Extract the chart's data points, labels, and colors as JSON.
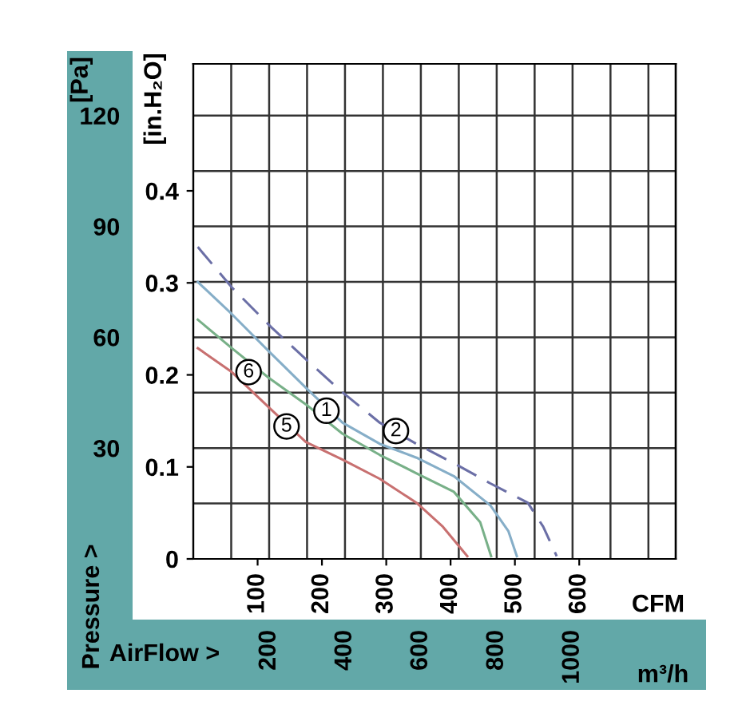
{
  "chart_data": {
    "type": "line",
    "xlabel": "CFM",
    "ylabel": "[in.H₂O]",
    "y2label": "[Pa]",
    "x2label": "m³/h",
    "xlim": [
      0,
      750
    ],
    "xticks": [
      100,
      200,
      300,
      400,
      500,
      600
    ],
    "ylim": [
      0,
      0.538
    ],
    "yticks": [
      0,
      0.1,
      0.2,
      0.3,
      0.4
    ],
    "y2lim": [
      0,
      134
    ],
    "y2ticks": [
      {
        "value": 15,
        "label": null
      },
      30,
      {
        "value": 45,
        "label": null
      },
      60,
      {
        "value": 75,
        "label": null
      },
      90,
      {
        "value": 105,
        "label": null
      },
      120
    ],
    "x2lim": [
      0,
      1272
    ],
    "x2ticks": [
      {
        "value": 100,
        "label": null
      },
      200,
      {
        "value": 300,
        "label": null
      },
      400,
      {
        "value": 500,
        "label": null
      },
      600,
      {
        "value": 700,
        "label": null
      },
      800,
      {
        "value": 900,
        "label": null
      },
      1000,
      {
        "value": 1100,
        "label": null
      },
      {
        "value": 1200,
        "label": null
      }
    ],
    "grid": true,
    "marker": "none",
    "series": [
      {
        "color": "#6b6fa6",
        "line_style": "dashed",
        "x": [
          7,
          60,
          121,
          175,
          232,
          290,
          347,
          405,
          462,
          520,
          544,
          565
        ],
        "values": [
          0.339,
          0.295,
          0.252,
          0.217,
          0.181,
          0.148,
          0.125,
          0.104,
          0.082,
          0.061,
          0.035,
          0.003
        ]
      },
      {
        "color": "#86aec8",
        "line_style": "solid",
        "x": [
          7,
          60,
          117,
          175,
          232,
          290,
          347,
          405,
          462,
          490,
          503
        ],
        "values": [
          0.301,
          0.266,
          0.226,
          0.186,
          0.148,
          0.125,
          0.11,
          0.09,
          0.058,
          0.03,
          0.003
        ]
      },
      {
        "color": "#78b088",
        "line_style": "solid",
        "x": [
          7,
          60,
          117,
          175,
          232,
          290,
          347,
          405,
          446,
          463
        ],
        "values": [
          0.26,
          0.229,
          0.197,
          0.168,
          0.136,
          0.113,
          0.093,
          0.073,
          0.04,
          0.003
        ]
      },
      {
        "color": "#c87070",
        "line_style": "solid",
        "x": [
          7,
          60,
          117,
          175,
          232,
          290,
          347,
          388,
          426
        ],
        "values": [
          0.229,
          0.203,
          0.165,
          0.127,
          0.108,
          0.087,
          0.061,
          0.035,
          0.003
        ]
      }
    ],
    "annotations": [
      "Pressure >",
      "AirFlow >",
      {
        "text": "6",
        "x": 86,
        "y": 0.203
      },
      {
        "text": "5",
        "x": 145,
        "y": 0.144
      },
      {
        "text": "1",
        "x": 207,
        "y": 0.161
      },
      {
        "text": "2",
        "x": 315,
        "y": 0.139
      }
    ]
  }
}
